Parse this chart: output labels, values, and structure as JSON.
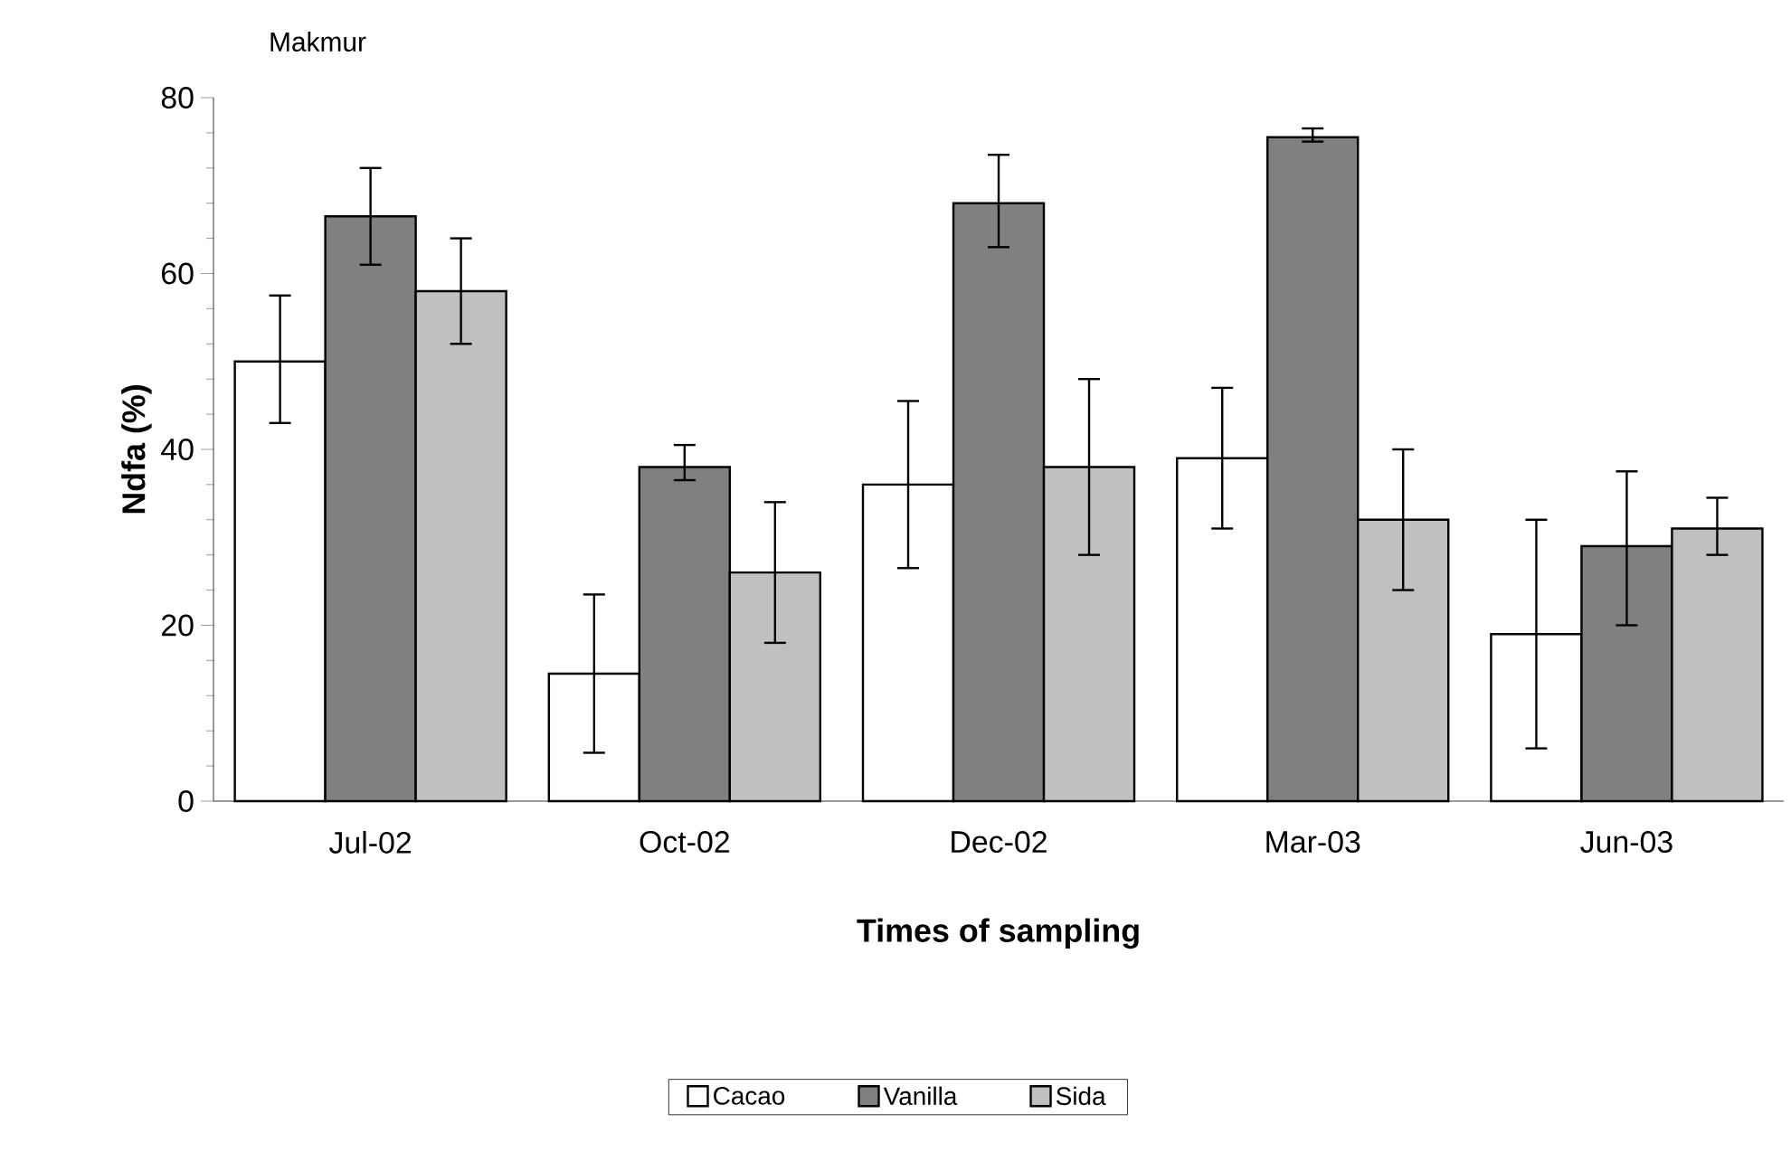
{
  "chart_data": {
    "type": "bar",
    "title": "Makmur",
    "xlabel": "Times of sampling",
    "ylabel": "Ndfa (%)",
    "categories": [
      "Jul-02",
      "Oct-02",
      "Dec-02",
      "Mar-03",
      "Jun-03"
    ],
    "series": [
      {
        "name": "Cacao",
        "color": "#ffffff",
        "values": [
          50,
          14.5,
          36,
          39,
          19
        ],
        "errors": [
          [
            43,
            57.5
          ],
          [
            5.5,
            23.5
          ],
          [
            26.5,
            45.5
          ],
          [
            31,
            47
          ],
          [
            6,
            32
          ]
        ]
      },
      {
        "name": "Vanilla",
        "color": "#808080",
        "values": [
          66.5,
          38,
          68,
          75.5,
          29
        ],
        "errors": [
          [
            61,
            72
          ],
          [
            36.5,
            40.5
          ],
          [
            63,
            73.5
          ],
          [
            75,
            76.5
          ],
          [
            20,
            37.5
          ]
        ]
      },
      {
        "name": "Sida",
        "color": "#c0c0c0",
        "values": [
          58,
          26,
          38,
          32,
          31
        ],
        "errors": [
          [
            52,
            64
          ],
          [
            18,
            34
          ],
          [
            28,
            48
          ],
          [
            24,
            40
          ],
          [
            28,
            34.5
          ]
        ]
      }
    ],
    "ylim": [
      0,
      80
    ],
    "yticks": [
      0,
      20,
      40,
      60,
      80
    ],
    "legend": "bottom",
    "grid": false
  }
}
